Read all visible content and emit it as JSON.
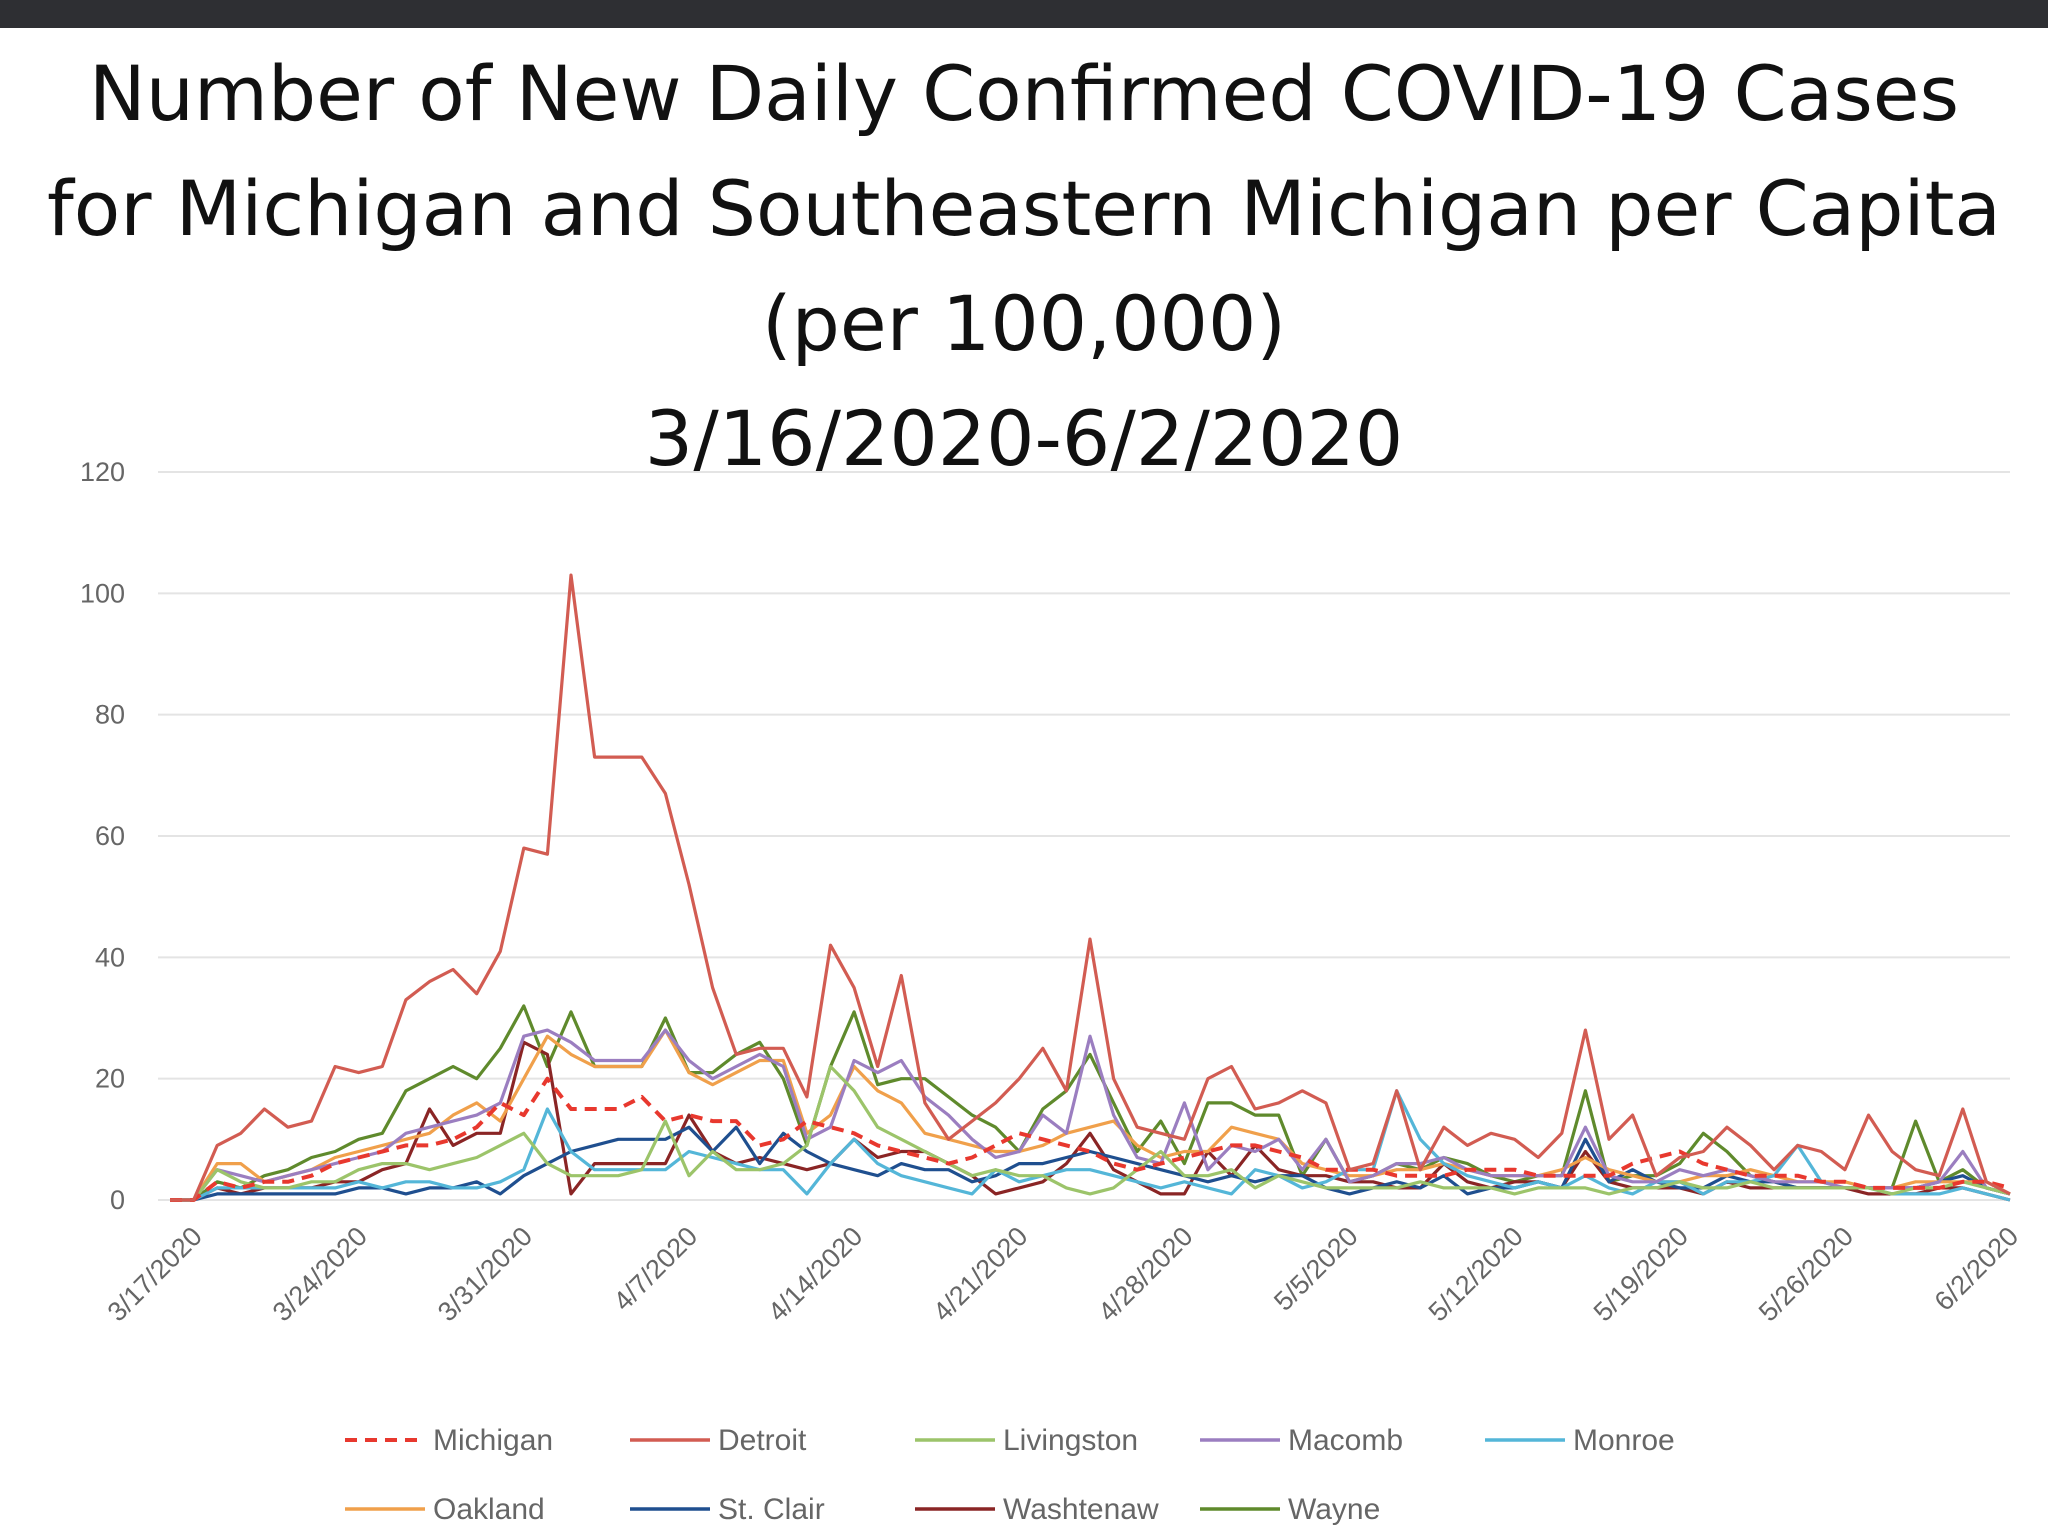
{
  "header": {
    "bar_color": "#2e2f33"
  },
  "chart_data": {
    "type": "line",
    "title_lines": [
      "Number of New Daily Confirmed COVID-19 Cases",
      "for Michigan and Southeastern Michigan per Capita",
      "(per 100,000)",
      "3/16/2020-6/2/2020"
    ],
    "xlabel": "",
    "ylabel": "",
    "x_start": "3/16/2020",
    "x_end": "6/2/2020",
    "x_tick_labels": [
      "3/17/2020",
      "3/24/2020",
      "3/31/2020",
      "4/7/2020",
      "4/14/2020",
      "4/21/2020",
      "4/28/2020",
      "5/5/2020",
      "5/12/2020",
      "5/19/2020",
      "5/26/2020",
      "6/2/2020"
    ],
    "y_tick_labels": [
      "0",
      "20",
      "40",
      "60",
      "80",
      "100",
      "120"
    ],
    "ylim": [
      0,
      120
    ],
    "grid": true,
    "legend_position": "bottom",
    "series": [
      {
        "name": "Michigan",
        "color": "#e8382e",
        "dashed": true,
        "values": [
          0,
          0,
          3,
          2,
          3,
          3,
          4,
          6,
          7,
          8,
          9,
          9,
          10,
          12,
          16,
          14,
          20,
          15,
          15,
          15,
          17,
          13,
          14,
          13,
          13,
          9,
          10,
          13,
          12,
          11,
          9,
          8,
          7,
          6,
          7,
          9,
          11,
          10,
          9,
          8,
          6,
          5,
          6,
          7,
          8,
          9,
          9,
          8,
          7,
          5,
          5,
          5,
          4,
          4,
          4,
          5,
          5,
          5,
          4,
          4,
          4,
          4,
          6,
          7,
          8,
          6,
          5,
          4,
          4,
          4,
          3,
          3,
          2,
          2,
          2,
          2,
          3,
          3,
          2
        ]
      },
      {
        "name": "Detroit",
        "color": "#d25c52",
        "values": [
          0,
          0,
          9,
          11,
          15,
          12,
          13,
          22,
          21,
          22,
          33,
          36,
          38,
          34,
          41,
          58,
          57,
          103,
          73,
          73,
          73,
          67,
          52,
          35,
          24,
          25,
          25,
          17,
          42,
          35,
          22,
          37,
          16,
          10,
          13,
          16,
          20,
          25,
          18,
          43,
          20,
          12,
          11,
          10,
          20,
          22,
          15,
          16,
          18,
          16,
          5,
          6,
          18,
          5,
          12,
          9,
          11,
          10,
          7,
          11,
          28,
          10,
          14,
          4,
          7,
          8,
          12,
          9,
          5,
          9,
          8,
          5,
          14,
          8,
          5,
          4,
          15,
          3,
          1
        ]
      },
      {
        "name": "Livingston",
        "color": "#9cc46a",
        "values": [
          0,
          0,
          5,
          3,
          2,
          2,
          3,
          3,
          5,
          6,
          6,
          5,
          6,
          7,
          9,
          11,
          6,
          4,
          4,
          4,
          5,
          13,
          4,
          8,
          5,
          5,
          6,
          9,
          22,
          18,
          12,
          10,
          8,
          6,
          4,
          5,
          4,
          4,
          2,
          1,
          2,
          5,
          8,
          4,
          4,
          5,
          2,
          4,
          3,
          2,
          2,
          2,
          2,
          3,
          2,
          2,
          2,
          1,
          2,
          2,
          2,
          1,
          2,
          2,
          3,
          2,
          2,
          3,
          2,
          2,
          2,
          2,
          2,
          1,
          2,
          2,
          3,
          2,
          1
        ]
      },
      {
        "name": "Macomb",
        "color": "#9b7ec0",
        "values": [
          0,
          0,
          5,
          4,
          3,
          4,
          5,
          6,
          7,
          8,
          11,
          12,
          13,
          14,
          16,
          27,
          28,
          26,
          23,
          23,
          23,
          28,
          23,
          20,
          22,
          24,
          22,
          10,
          12,
          23,
          21,
          23,
          17,
          14,
          10,
          7,
          8,
          14,
          11,
          27,
          14,
          7,
          6,
          16,
          5,
          9,
          8,
          10,
          5,
          10,
          3,
          4,
          6,
          6,
          7,
          5,
          4,
          4,
          4,
          4,
          12,
          4,
          3,
          3,
          5,
          4,
          5,
          4,
          3,
          3,
          3,
          2,
          2,
          2,
          2,
          3,
          8,
          2,
          1
        ]
      },
      {
        "name": "Monroe",
        "color": "#54b6d8",
        "values": [
          0,
          0,
          2,
          2,
          2,
          2,
          2,
          2,
          3,
          2,
          3,
          3,
          2,
          2,
          3,
          5,
          15,
          8,
          5,
          5,
          5,
          5,
          8,
          7,
          6,
          5,
          5,
          1,
          6,
          10,
          6,
          4,
          3,
          2,
          1,
          5,
          3,
          4,
          5,
          5,
          4,
          3,
          2,
          3,
          2,
          1,
          5,
          4,
          2,
          3,
          5,
          5,
          18,
          10,
          6,
          4,
          3,
          2,
          3,
          2,
          4,
          2,
          1,
          3,
          3,
          1,
          3,
          3,
          4,
          9,
          3,
          2,
          2,
          1,
          1,
          1,
          2,
          1,
          0
        ]
      },
      {
        "name": "Oakland",
        "color": "#f0a04b",
        "values": [
          0,
          0,
          6,
          6,
          3,
          4,
          5,
          7,
          8,
          9,
          10,
          11,
          14,
          16,
          13,
          20,
          27,
          24,
          22,
          22,
          22,
          28,
          21,
          19,
          21,
          23,
          23,
          11,
          14,
          22,
          18,
          16,
          11,
          10,
          9,
          8,
          8,
          9,
          11,
          12,
          13,
          9,
          7,
          8,
          8,
          12,
          11,
          10,
          6,
          5,
          4,
          4,
          5,
          5,
          6,
          5,
          4,
          4,
          4,
          5,
          7,
          5,
          4,
          3,
          3,
          4,
          4,
          5,
          4,
          3,
          3,
          3,
          2,
          2,
          3,
          3,
          3,
          3,
          1
        ]
      },
      {
        "name": "St. Clair",
        "color": "#1f4f8f",
        "values": [
          0,
          0,
          1,
          1,
          1,
          1,
          1,
          1,
          2,
          2,
          1,
          2,
          2,
          3,
          1,
          4,
          6,
          8,
          9,
          10,
          10,
          10,
          12,
          8,
          12,
          6,
          11,
          8,
          6,
          5,
          4,
          6,
          5,
          5,
          3,
          4,
          6,
          6,
          7,
          8,
          7,
          6,
          5,
          4,
          3,
          4,
          3,
          4,
          4,
          2,
          1,
          2,
          3,
          2,
          4,
          1,
          2,
          2,
          3,
          2,
          10,
          3,
          5,
          3,
          2,
          2,
          4,
          3,
          3,
          2,
          2,
          2,
          2,
          2,
          2,
          3,
          4,
          2,
          1
        ]
      },
      {
        "name": "Washtenaw",
        "color": "#8a2525",
        "values": [
          0,
          0,
          2,
          1,
          2,
          2,
          2,
          3,
          3,
          5,
          6,
          15,
          9,
          11,
          11,
          26,
          24,
          1,
          6,
          6,
          6,
          6,
          14,
          8,
          6,
          7,
          6,
          5,
          6,
          10,
          7,
          8,
          8,
          6,
          4,
          1,
          2,
          3,
          6,
          11,
          5,
          3,
          1,
          1,
          8,
          4,
          9,
          5,
          4,
          4,
          3,
          3,
          2,
          2,
          6,
          3,
          2,
          3,
          3,
          2,
          8,
          3,
          2,
          2,
          2,
          1,
          3,
          2,
          2,
          2,
          2,
          2,
          1,
          1,
          1,
          2,
          2,
          1,
          0
        ]
      },
      {
        "name": "Wayne",
        "color": "#5f8a2c",
        "values": [
          0,
          0,
          3,
          2,
          4,
          5,
          7,
          8,
          10,
          11,
          18,
          20,
          22,
          20,
          25,
          32,
          22,
          31,
          22,
          22,
          22,
          30,
          21,
          21,
          24,
          26,
          20,
          9,
          22,
          31,
          19,
          20,
          20,
          17,
          14,
          12,
          8,
          15,
          18,
          24,
          16,
          8,
          13,
          6,
          16,
          16,
          14,
          14,
          4,
          10,
          3,
          4,
          6,
          5,
          7,
          6,
          4,
          3,
          4,
          4,
          18,
          3,
          4,
          4,
          6,
          11,
          8,
          4,
          3,
          2,
          2,
          2,
          2,
          2,
          13,
          3,
          5,
          2,
          1
        ]
      }
    ]
  }
}
